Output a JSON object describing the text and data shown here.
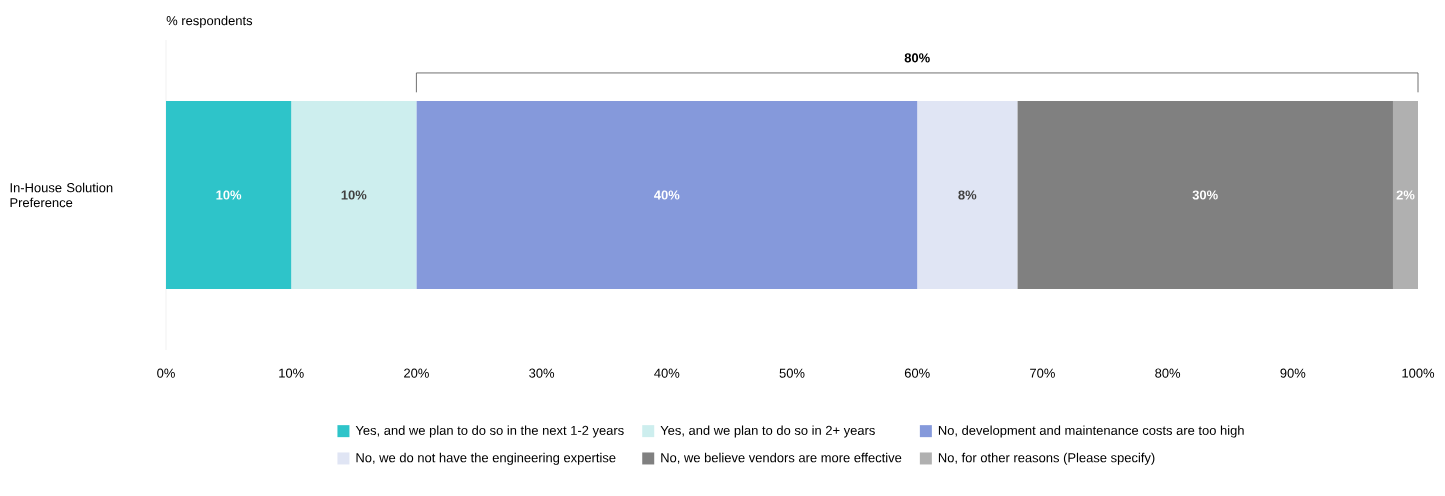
{
  "chart_data": {
    "type": "bar",
    "orientation": "horizontal",
    "stacked": true,
    "categories": [
      "In-House Solution Preference"
    ],
    "series": [
      {
        "name": "Yes, and we plan to do so in the next 1-2 years",
        "color": "#2ec4c9",
        "values": [
          10
        ],
        "value_labels": [
          "10%"
        ]
      },
      {
        "name": "Yes, and we plan to do so in 2+ years",
        "color": "#cdeeee",
        "values": [
          10
        ],
        "value_labels": [
          "10%"
        ]
      },
      {
        "name": "No, development and maintenance costs are too high",
        "color": "#8599db",
        "values": [
          40
        ],
        "value_labels": [
          "40%"
        ]
      },
      {
        "name": "No, we do not have the engineering expertise",
        "color": "#e0e5f4",
        "values": [
          8
        ],
        "value_labels": [
          "8%"
        ]
      },
      {
        "name": "No, we believe vendors are more effective",
        "color": "#808080",
        "values": [
          30
        ],
        "value_labels": [
          "30%"
        ]
      },
      {
        "name": "No, for other reasons (Please specify)",
        "color": "#b0b0b0",
        "values": [
          2
        ],
        "value_labels": [
          "2%"
        ]
      }
    ],
    "xlim": [
      0,
      100
    ],
    "xticks": [
      {
        "value": 0,
        "label": "0%"
      },
      {
        "value": 10,
        "label": "10%"
      },
      {
        "value": 20,
        "label": "20%"
      },
      {
        "value": 30,
        "label": "30%"
      },
      {
        "value": 40,
        "label": "40%"
      },
      {
        "value": 50,
        "label": "50%"
      },
      {
        "value": 60,
        "label": "60%"
      },
      {
        "value": 70,
        "label": "70%"
      },
      {
        "value": 80,
        "label": "80%"
      },
      {
        "value": 90,
        "label": "90%"
      },
      {
        "value": 100,
        "label": "100%"
      }
    ],
    "legend": "bottom",
    "grid": false,
    "annotations": [
      "80%",
      "% respondents"
    ]
  }
}
